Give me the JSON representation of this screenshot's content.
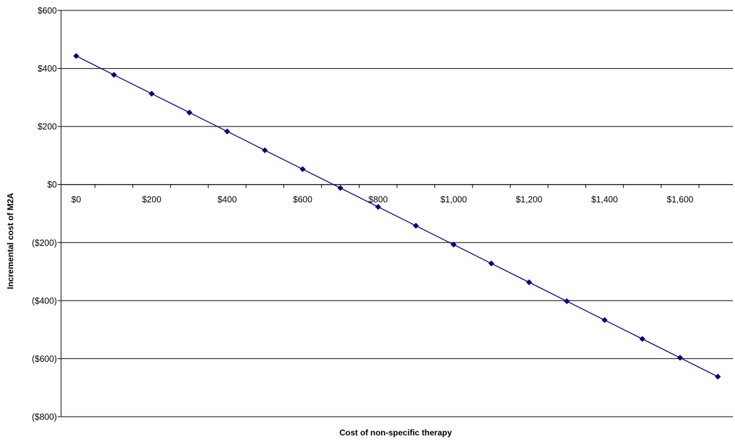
{
  "chart_data": {
    "type": "line",
    "title": "",
    "xlabel": "Cost of non-specific therapy",
    "ylabel": "Incremental cost of M2A",
    "xlim": [
      -40,
      1740
    ],
    "ylim": [
      -800,
      600
    ],
    "x_ticks": [
      {
        "value": 0,
        "label": "$0"
      },
      {
        "value": 200,
        "label": "$200"
      },
      {
        "value": 400,
        "label": "$400"
      },
      {
        "value": 600,
        "label": "$600"
      },
      {
        "value": 800,
        "label": "$800"
      },
      {
        "value": 1000,
        "label": "$1,000"
      },
      {
        "value": 1200,
        "label": "$1,200"
      },
      {
        "value": 1400,
        "label": "$1,400"
      },
      {
        "value": 1600,
        "label": "$1,600"
      }
    ],
    "y_ticks": [
      {
        "value": 600,
        "label": "$600"
      },
      {
        "value": 400,
        "label": "$400"
      },
      {
        "value": 200,
        "label": "$200"
      },
      {
        "value": 0,
        "label": "$0"
      },
      {
        "value": -200,
        "label": "($200)"
      },
      {
        "value": -400,
        "label": "($400)"
      },
      {
        "value": -600,
        "label": "($600)"
      },
      {
        "value": -800,
        "label": "($800)"
      }
    ],
    "grid": "horizontal",
    "legend": "none",
    "line_color": "#000080",
    "marker": "diamond",
    "series": [
      {
        "x": [
          0,
          100,
          200,
          300,
          400,
          500,
          600,
          700,
          800,
          900,
          1000,
          1100,
          1200,
          1300,
          1400,
          1500,
          1600,
          1700
        ],
        "y": [
          443,
          378,
          313,
          248,
          183,
          118,
          53,
          -12,
          -77,
          -142,
          -207,
          -272,
          -337,
          -402,
          -467,
          -532,
          -597,
          -662
        ]
      }
    ]
  }
}
